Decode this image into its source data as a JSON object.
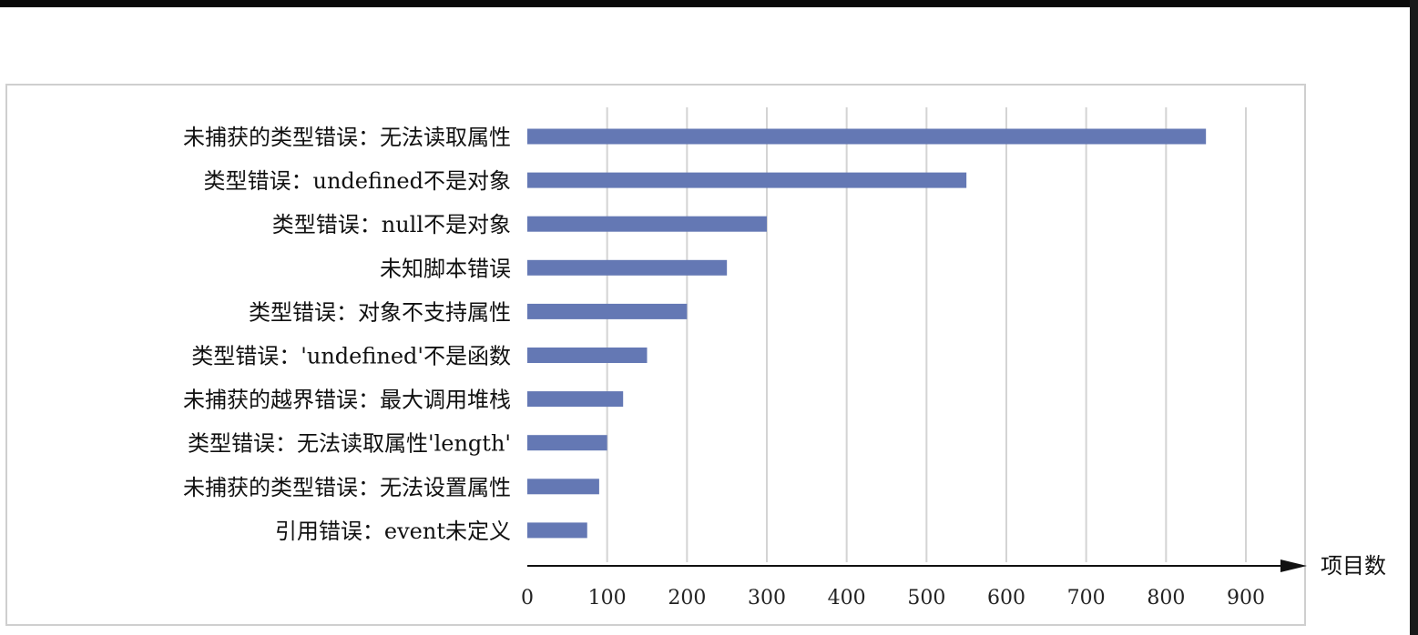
{
  "chart_data": {
    "type": "bar",
    "orientation": "horizontal",
    "categories": [
      "未捕获的类型错误：无法读取属性",
      "类型错误：undefined不是对象",
      "类型错误：null不是对象",
      "未知脚本错误",
      "类型错误：对象不支持属性",
      "类型错误：'undefined'不是函数",
      "未捕获的越界错误：最大调用堆栈",
      "类型错误：无法读取属性'length'",
      "未捕获的类型错误：无法设置属性",
      "引用错误：event未定义"
    ],
    "values": [
      850,
      550,
      300,
      250,
      200,
      150,
      120,
      100,
      90,
      75
    ],
    "xlabel": "项目数",
    "xlim": [
      0,
      900
    ],
    "xticks": [
      0,
      100,
      200,
      300,
      400,
      500,
      600,
      700,
      800,
      900
    ],
    "grid": true,
    "bar_color": "#6478b4",
    "grid_color": "#d4d4d4"
  }
}
